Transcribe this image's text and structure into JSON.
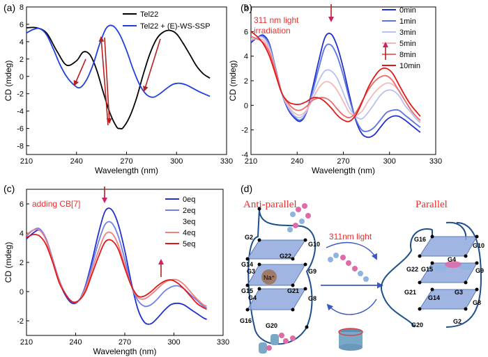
{
  "chart_data": [
    {
      "panel": "(a)",
      "type": "line",
      "xlabel": "Wavelength (nm)",
      "ylabel": "CD (mdeg)",
      "xlim": [
        210,
        330
      ],
      "ylim": [
        -9,
        8
      ],
      "xticks": [
        210,
        240,
        270,
        300,
        330
      ],
      "yticks": [
        -8,
        -6,
        -4,
        -2,
        0,
        2,
        4,
        6,
        8
      ],
      "legend_position": "top-right",
      "series": [
        {
          "name": "Tel22",
          "color": "#000000",
          "x": [
            210,
            216,
            222,
            228,
            234,
            240,
            244,
            248,
            252,
            256,
            260,
            264,
            266,
            268,
            272,
            276,
            280,
            284,
            288,
            292,
            296,
            300,
            304,
            308,
            312,
            316,
            320
          ],
          "y": [
            5.6,
            5.6,
            5.0,
            3.0,
            1.3,
            1.8,
            2.8,
            2.5,
            0.8,
            -1.8,
            -4.2,
            -5.8,
            -6.0,
            -5.9,
            -4.6,
            -2.5,
            0.2,
            2.6,
            4.3,
            5.1,
            5.3,
            4.9,
            3.8,
            2.5,
            1.2,
            0.3,
            -0.2
          ]
        },
        {
          "name": "Tel22 + (E)-WS-SSP",
          "color": "#1f3fe0",
          "x": [
            210,
            214,
            218,
            222,
            226,
            230,
            234,
            238,
            242,
            246,
            250,
            254,
            258,
            262,
            266,
            270,
            274,
            278,
            282,
            286,
            290,
            294,
            298,
            302,
            306,
            310,
            314,
            320
          ],
          "y": [
            5.0,
            5.4,
            5.5,
            4.8,
            3.2,
            1.4,
            0.0,
            -0.9,
            -1.3,
            -0.4,
            1.4,
            3.8,
            5.6,
            5.8,
            4.8,
            3.0,
            0.8,
            -1.0,
            -2.1,
            -2.4,
            -2.0,
            -1.4,
            -0.9,
            -0.8,
            -1.0,
            -1.4,
            -1.8,
            -2.3
          ]
        }
      ],
      "annotations": [
        "4 red arrows marking CD changes"
      ]
    },
    {
      "panel": "(b)",
      "type": "line",
      "xlabel": "Wavelength (nm)",
      "ylabel": "CD (mdeg)",
      "xlim": [
        210,
        330
      ],
      "ylim": [
        -4,
        8
      ],
      "xticks": [
        210,
        240,
        270,
        300,
        330
      ],
      "yticks": [
        -4,
        -2,
        0,
        2,
        4,
        6,
        8
      ],
      "legend_position": "top-right",
      "annotation_text": [
        "311 nm light",
        "irradiation"
      ],
      "series": [
        {
          "name": "0min",
          "color": "#1f2fd0",
          "x": [
            210,
            214,
            218,
            222,
            226,
            230,
            234,
            238,
            242,
            246,
            250,
            254,
            258,
            262,
            266,
            270,
            274,
            278,
            282,
            286,
            290,
            294,
            298,
            302,
            306,
            310,
            314,
            318,
            320
          ],
          "y": [
            5.1,
            5.5,
            5.7,
            5.0,
            3.0,
            1.0,
            -0.3,
            -1.0,
            -1.3,
            -0.6,
            1.4,
            3.6,
            5.5,
            5.8,
            4.8,
            3.0,
            0.8,
            -1.2,
            -2.3,
            -2.6,
            -2.4,
            -1.8,
            -1.2,
            -0.9,
            -0.9,
            -1.2,
            -1.6,
            -2.0,
            -2.2
          ]
        },
        {
          "name": "1min",
          "color": "#5a72e6",
          "x": [
            210,
            214,
            218,
            222,
            226,
            230,
            234,
            238,
            242,
            246,
            250,
            254,
            258,
            262,
            266,
            270,
            274,
            278,
            282,
            286,
            290,
            294,
            298,
            302,
            306,
            310,
            314,
            318,
            320
          ],
          "y": [
            5.2,
            5.5,
            5.6,
            4.9,
            3.0,
            1.0,
            -0.2,
            -0.9,
            -1.2,
            -0.6,
            1.1,
            3.0,
            4.7,
            4.9,
            4.0,
            2.4,
            0.5,
            -1.1,
            -2.0,
            -2.1,
            -1.8,
            -1.2,
            -0.6,
            -0.4,
            -0.4,
            -0.8,
            -1.2,
            -1.6,
            -1.8
          ]
        },
        {
          "name": "3min",
          "color": "#b8c0f2",
          "x": [
            210,
            214,
            218,
            222,
            226,
            230,
            234,
            238,
            242,
            246,
            250,
            254,
            258,
            262,
            266,
            270,
            274,
            278,
            282,
            286,
            290,
            294,
            298,
            302,
            306,
            310,
            314,
            318,
            320
          ],
          "y": [
            5.3,
            5.5,
            5.5,
            4.7,
            2.9,
            1.0,
            -0.1,
            -0.8,
            -1.0,
            -0.5,
            0.8,
            2.0,
            2.8,
            2.8,
            2.2,
            1.0,
            -0.2,
            -0.9,
            -1.1,
            -0.6,
            0.1,
            0.8,
            1.2,
            1.2,
            0.8,
            0.0,
            -0.6,
            -1.2,
            -1.4
          ]
        },
        {
          "name": "5min",
          "color": "#f4b8b8",
          "x": [
            210,
            214,
            218,
            222,
            226,
            230,
            234,
            238,
            242,
            246,
            250,
            254,
            258,
            262,
            266,
            270,
            274,
            278,
            282,
            286,
            290,
            294,
            298,
            302,
            306,
            310,
            314,
            318,
            320
          ],
          "y": [
            5.4,
            5.4,
            5.3,
            4.5,
            2.8,
            1.0,
            0.0,
            -0.6,
            -0.8,
            -0.4,
            0.5,
            1.4,
            1.9,
            1.8,
            1.2,
            0.3,
            -0.6,
            -0.8,
            -0.5,
            0.3,
            1.0,
            1.5,
            1.8,
            1.7,
            1.2,
            0.4,
            -0.4,
            -1.0,
            -1.3
          ]
        },
        {
          "name": "8min",
          "color": "#ec6a6a",
          "x": [
            210,
            214,
            218,
            222,
            226,
            230,
            234,
            238,
            242,
            246,
            250,
            254,
            258,
            262,
            266,
            270,
            274,
            278,
            282,
            286,
            290,
            294,
            298,
            302,
            306,
            310,
            314,
            318,
            320
          ],
          "y": [
            5.6,
            5.4,
            5.1,
            4.3,
            2.8,
            1.0,
            0.2,
            -0.3,
            -0.4,
            -0.1,
            0.4,
            0.6,
            0.6,
            0.3,
            -0.3,
            -0.8,
            -1.0,
            -0.6,
            0.3,
            1.2,
            1.9,
            2.3,
            2.4,
            2.0,
            1.2,
            0.4,
            -0.4,
            -1.0,
            -1.2
          ]
        },
        {
          "name": "10min",
          "color": "#e01818",
          "x": [
            210,
            214,
            218,
            222,
            226,
            230,
            234,
            238,
            242,
            246,
            250,
            254,
            258,
            262,
            266,
            270,
            274,
            278,
            282,
            286,
            290,
            294,
            298,
            302,
            306,
            310,
            314,
            318,
            320
          ],
          "y": [
            6.0,
            5.6,
            5.0,
            4.0,
            2.5,
            1.0,
            0.3,
            0.1,
            0.1,
            0.3,
            0.6,
            0.6,
            0.3,
            -0.2,
            -0.8,
            -1.2,
            -1.3,
            -0.8,
            0.2,
            1.4,
            2.3,
            2.9,
            3.0,
            2.6,
            1.7,
            0.8,
            0.0,
            -0.6,
            -0.9
          ]
        }
      ]
    },
    {
      "panel": "(c)",
      "type": "line",
      "xlabel": "Wavelength (nm)",
      "ylabel": "CD (mdeg)",
      "xlim": [
        210,
        330
      ],
      "ylim": [
        -3,
        7
      ],
      "xticks": [
        210,
        240,
        270,
        300,
        330
      ],
      "yticks": [
        -2,
        0,
        2,
        4,
        6
      ],
      "legend_position": "top-right",
      "annotation_text": [
        "adding CB[7]"
      ],
      "series": [
        {
          "name": "0eq",
          "color": "#1f2fd0",
          "x": [
            210,
            214,
            218,
            222,
            226,
            230,
            234,
            238,
            242,
            246,
            250,
            254,
            258,
            262,
            266,
            270,
            274,
            278,
            282,
            286,
            290,
            294,
            298,
            302,
            306,
            310,
            314,
            318,
            320
          ],
          "y": [
            3.6,
            4.0,
            4.2,
            3.6,
            2.2,
            0.7,
            -0.3,
            -0.8,
            -0.6,
            0.4,
            2.1,
            4.0,
            5.5,
            5.6,
            4.6,
            2.8,
            0.6,
            -1.2,
            -2.1,
            -2.2,
            -1.8,
            -1.3,
            -0.9,
            -0.8,
            -0.9,
            -1.2,
            -1.5,
            -1.8,
            -1.9
          ]
        },
        {
          "name": "2eq",
          "color": "#7080e8",
          "x": [
            210,
            214,
            218,
            222,
            226,
            230,
            234,
            238,
            242,
            246,
            250,
            254,
            258,
            262,
            266,
            270,
            274,
            278,
            282,
            286,
            290,
            294,
            298,
            302,
            306,
            310,
            314,
            318,
            320
          ],
          "y": [
            3.8,
            4.2,
            4.3,
            3.6,
            2.2,
            0.8,
            -0.2,
            -0.7,
            -0.6,
            0.3,
            1.8,
            3.4,
            4.6,
            4.7,
            3.8,
            2.2,
            0.4,
            -0.6,
            -1.0,
            -0.9,
            -0.5,
            0.0,
            0.3,
            0.4,
            0.2,
            -0.2,
            -0.6,
            -1.0,
            -1.1
          ]
        },
        {
          "name": "3eq",
          "color": "#ffffff",
          "x": [],
          "y": []
        },
        {
          "name": "4eq",
          "color": "#ee8080",
          "x": [
            210,
            214,
            218,
            222,
            226,
            230,
            234,
            238,
            242,
            246,
            250,
            254,
            258,
            262,
            266,
            270,
            274,
            278,
            282,
            286,
            290,
            294,
            298,
            302,
            306,
            310,
            314,
            318,
            320
          ],
          "y": [
            3.9,
            4.2,
            4.2,
            3.5,
            2.1,
            0.7,
            -0.2,
            -0.7,
            -0.6,
            0.2,
            1.5,
            2.8,
            3.9,
            4.0,
            3.2,
            1.8,
            0.4,
            -0.4,
            -0.5,
            -0.2,
            0.2,
            0.6,
            0.8,
            0.8,
            0.5,
            0.0,
            -0.5,
            -0.9,
            -1.0
          ]
        },
        {
          "name": "5eq",
          "color": "#e01818",
          "x": [
            210,
            214,
            218,
            222,
            226,
            230,
            234,
            238,
            242,
            246,
            250,
            254,
            258,
            262,
            266,
            270,
            274,
            278,
            282,
            286,
            290,
            294,
            298,
            302,
            306,
            310,
            314,
            318,
            320
          ],
          "y": [
            3.7,
            3.9,
            3.8,
            3.2,
            2.0,
            0.6,
            -0.2,
            -0.7,
            -0.6,
            0.0,
            1.2,
            2.4,
            3.4,
            3.5,
            2.9,
            1.6,
            0.4,
            -0.3,
            -0.3,
            0.0,
            0.4,
            0.7,
            0.8,
            0.6,
            0.2,
            -0.3,
            -0.8,
            -1.1,
            -1.2
          ]
        }
      ]
    }
  ],
  "diagram": {
    "panel": "(d)",
    "left_title": "Anti-parallel",
    "right_title": "Parallel",
    "arrow_label": "311nm light",
    "ion_label": "Na⁺",
    "left_labels": [
      "G2",
      "G10",
      "G22",
      "G14",
      "G9",
      "G3",
      "G15",
      "G21",
      "G4",
      "G8",
      "G16",
      "G20"
    ],
    "right_labels": [
      "G16",
      "G10",
      "G22",
      "G4",
      "G9",
      "G15",
      "G21",
      "G14",
      "G3",
      "G8",
      "G20",
      "G2"
    ],
    "colors": {
      "plate": "#8fa8dc",
      "strand": "#1c4f8c",
      "arrow": "#3a56c8",
      "title_red": "#e83030",
      "azo_pink": "#e06aa8",
      "azo_blue": "#8fb4e0"
    }
  }
}
